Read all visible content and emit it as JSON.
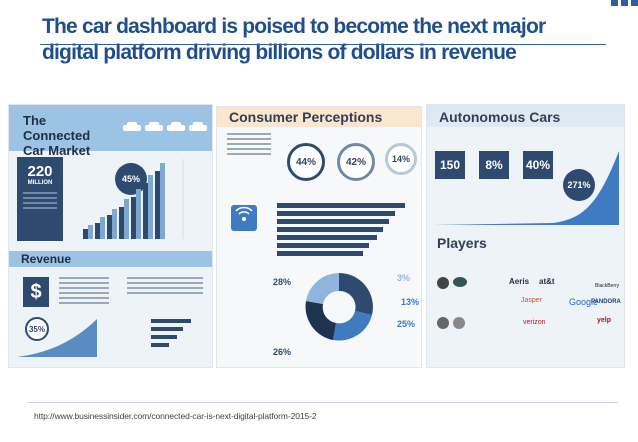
{
  "slide": {
    "title": "The car dashboard is poised to become the next major digital platform driving billions of dollars in revenue",
    "source_caption": "http://www.businessinsider.com/connected-car-is-next-digital-platform-2015-2"
  },
  "infographic": {
    "panel1": {
      "title": "The Connected Car Market",
      "big_stat": "220",
      "big_stat_unit": "MILLION",
      "circle_stat": "45%",
      "revenue_title": "Revenue",
      "revenue_circle": "35%",
      "dollar_icon": "dollar-sign-icon"
    },
    "panel2": {
      "title": "Consumer Perceptions",
      "circles": [
        "44%",
        "42%",
        "14%"
      ],
      "donut_labels": [
        "28%",
        "26%",
        "3%",
        "13%",
        "25%"
      ]
    },
    "panel3": {
      "title": "Autonomous Cars",
      "boxes": [
        "150",
        "8%",
        "40%"
      ],
      "curve_stat": "271%",
      "players_title": "Players",
      "logos": [
        "Aeris",
        "at&t",
        "Jasper",
        "verizon",
        "Google",
        "PANDORA",
        "yelp",
        "BlackBerry"
      ]
    }
  },
  "colors": {
    "title_blue": "#1f4e8c",
    "navy": "#2e4a6e",
    "light_blue": "#9cc3e4",
    "peach": "#fbe6cf"
  }
}
